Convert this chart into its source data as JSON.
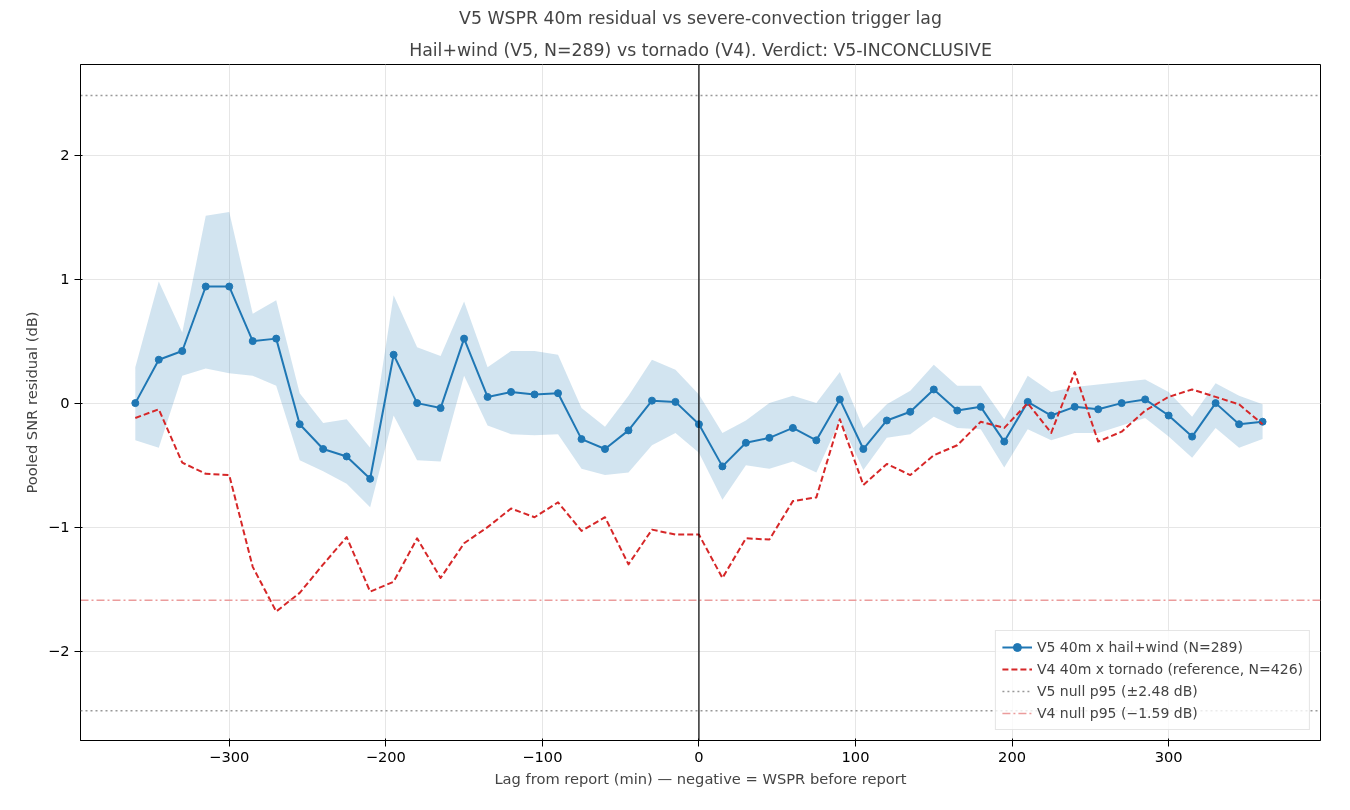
{
  "chart_data": {
    "type": "line",
    "title": "V5 WSPR 40m residual vs severe-convection trigger lag",
    "subtitle": "Hail+wind (V5, N=289) vs tornado (V4). Verdict: V5-INCONCLUSIVE",
    "xlabel": "Lag from report (min) — negative = WSPR before report",
    "ylabel": "Pooled SNR residual (dB)",
    "x": [
      -360,
      -345,
      -330,
      -315,
      -300,
      -285,
      -270,
      -255,
      -240,
      -225,
      -210,
      -195,
      -180,
      -165,
      -150,
      -135,
      -120,
      -105,
      -90,
      -75,
      -60,
      -45,
      -30,
      -15,
      0,
      15,
      30,
      45,
      60,
      75,
      90,
      105,
      120,
      135,
      150,
      165,
      180,
      195,
      210,
      225,
      240,
      255,
      270,
      285,
      300,
      315,
      330,
      345,
      360
    ],
    "series": [
      {
        "name": "V5 40m x hail+wind (N=289)",
        "color": "#1f77b4",
        "marker": "circle",
        "line_style": "solid",
        "values": [
          0.0,
          0.35,
          0.42,
          0.94,
          0.94,
          0.5,
          0.52,
          -0.17,
          -0.37,
          -0.43,
          -0.61,
          0.39,
          0.0,
          -0.04,
          0.52,
          0.05,
          0.09,
          0.07,
          0.08,
          -0.29,
          -0.37,
          -0.22,
          0.02,
          0.01,
          -0.17,
          -0.51,
          -0.32,
          -0.28,
          -0.2,
          -0.3,
          0.03,
          -0.37,
          -0.14,
          -0.07,
          0.11,
          -0.06,
          -0.03,
          -0.31,
          0.01,
          -0.1,
          -0.03,
          -0.05,
          0.0,
          0.03,
          -0.1,
          -0.27,
          0.0,
          -0.17,
          -0.15
        ],
        "upper": [
          0.29,
          0.98,
          0.57,
          1.51,
          1.54,
          0.72,
          0.83,
          0.08,
          -0.16,
          -0.13,
          -0.36,
          0.87,
          0.45,
          0.38,
          0.82,
          0.29,
          0.42,
          0.42,
          0.39,
          -0.04,
          -0.19,
          0.06,
          0.35,
          0.27,
          0.07,
          -0.24,
          -0.14,
          0.0,
          0.06,
          0.0,
          0.25,
          -0.2,
          -0.01,
          0.1,
          0.31,
          0.14,
          0.14,
          -0.13,
          0.22,
          0.09,
          0.13,
          0.15,
          0.17,
          0.19,
          0.09,
          -0.11,
          0.16,
          0.06,
          -0.01
        ],
        "lower": [
          -0.3,
          -0.36,
          0.22,
          0.28,
          0.24,
          0.22,
          0.14,
          -0.46,
          -0.55,
          -0.65,
          -0.84,
          -0.1,
          -0.46,
          -0.47,
          0.22,
          -0.18,
          -0.25,
          -0.26,
          -0.25,
          -0.53,
          -0.58,
          -0.56,
          -0.34,
          -0.24,
          -0.4,
          -0.78,
          -0.5,
          -0.53,
          -0.47,
          -0.56,
          -0.14,
          -0.54,
          -0.28,
          -0.25,
          -0.11,
          -0.2,
          -0.21,
          -0.52,
          -0.21,
          -0.3,
          -0.24,
          -0.24,
          -0.18,
          -0.12,
          -0.27,
          -0.44,
          -0.2,
          -0.36,
          -0.29
        ]
      },
      {
        "name": "V4 40m x tornado (reference, N=426)",
        "color": "#d62728",
        "marker": "none",
        "line_style": "dashed",
        "values": [
          -0.12,
          -0.05,
          -0.48,
          -0.57,
          -0.58,
          -1.32,
          -1.68,
          -1.53,
          -1.3,
          -1.08,
          -1.52,
          -1.44,
          -1.09,
          -1.41,
          -1.13,
          -1.0,
          -0.85,
          -0.92,
          -0.8,
          -1.03,
          -0.92,
          -1.3,
          -1.02,
          -1.06,
          -1.06,
          -1.41,
          -1.09,
          -1.1,
          -0.79,
          -0.76,
          -0.13,
          -0.66,
          -0.49,
          -0.58,
          -0.42,
          -0.34,
          -0.15,
          -0.2,
          0.0,
          -0.24,
          0.25,
          -0.31,
          -0.23,
          -0.06,
          0.05,
          0.11,
          0.05,
          -0.01,
          -0.17
        ]
      }
    ],
    "ref_lines": [
      {
        "axis": "y",
        "value": 2.48,
        "label": "V5 null p95 (±2.48 dB)",
        "color": "#999999",
        "line_style": "dotted"
      },
      {
        "axis": "y",
        "value": -2.48,
        "color": "#999999",
        "line_style": "dotted"
      },
      {
        "axis": "y",
        "value": -1.59,
        "label": "V4 null p95 (−1.59 dB)",
        "color": "#eb9c9c",
        "line_style": "dashdot"
      },
      {
        "axis": "x",
        "value": 0,
        "color": "#000000",
        "line_style": "solid"
      }
    ],
    "xlim": [
      -395,
      397
    ],
    "ylim": [
      -2.72,
      2.73
    ],
    "xticks": [
      {
        "value": -300,
        "label": "−300"
      },
      {
        "value": -200,
        "label": "−200"
      },
      {
        "value": -100,
        "label": "−100"
      },
      0,
      100,
      200,
      300
    ],
    "yticks": [
      {
        "value": -2,
        "label": "−2"
      },
      {
        "value": -1,
        "label": "−1"
      },
      0,
      1,
      2
    ],
    "grid": true,
    "legend": "bottom right"
  }
}
